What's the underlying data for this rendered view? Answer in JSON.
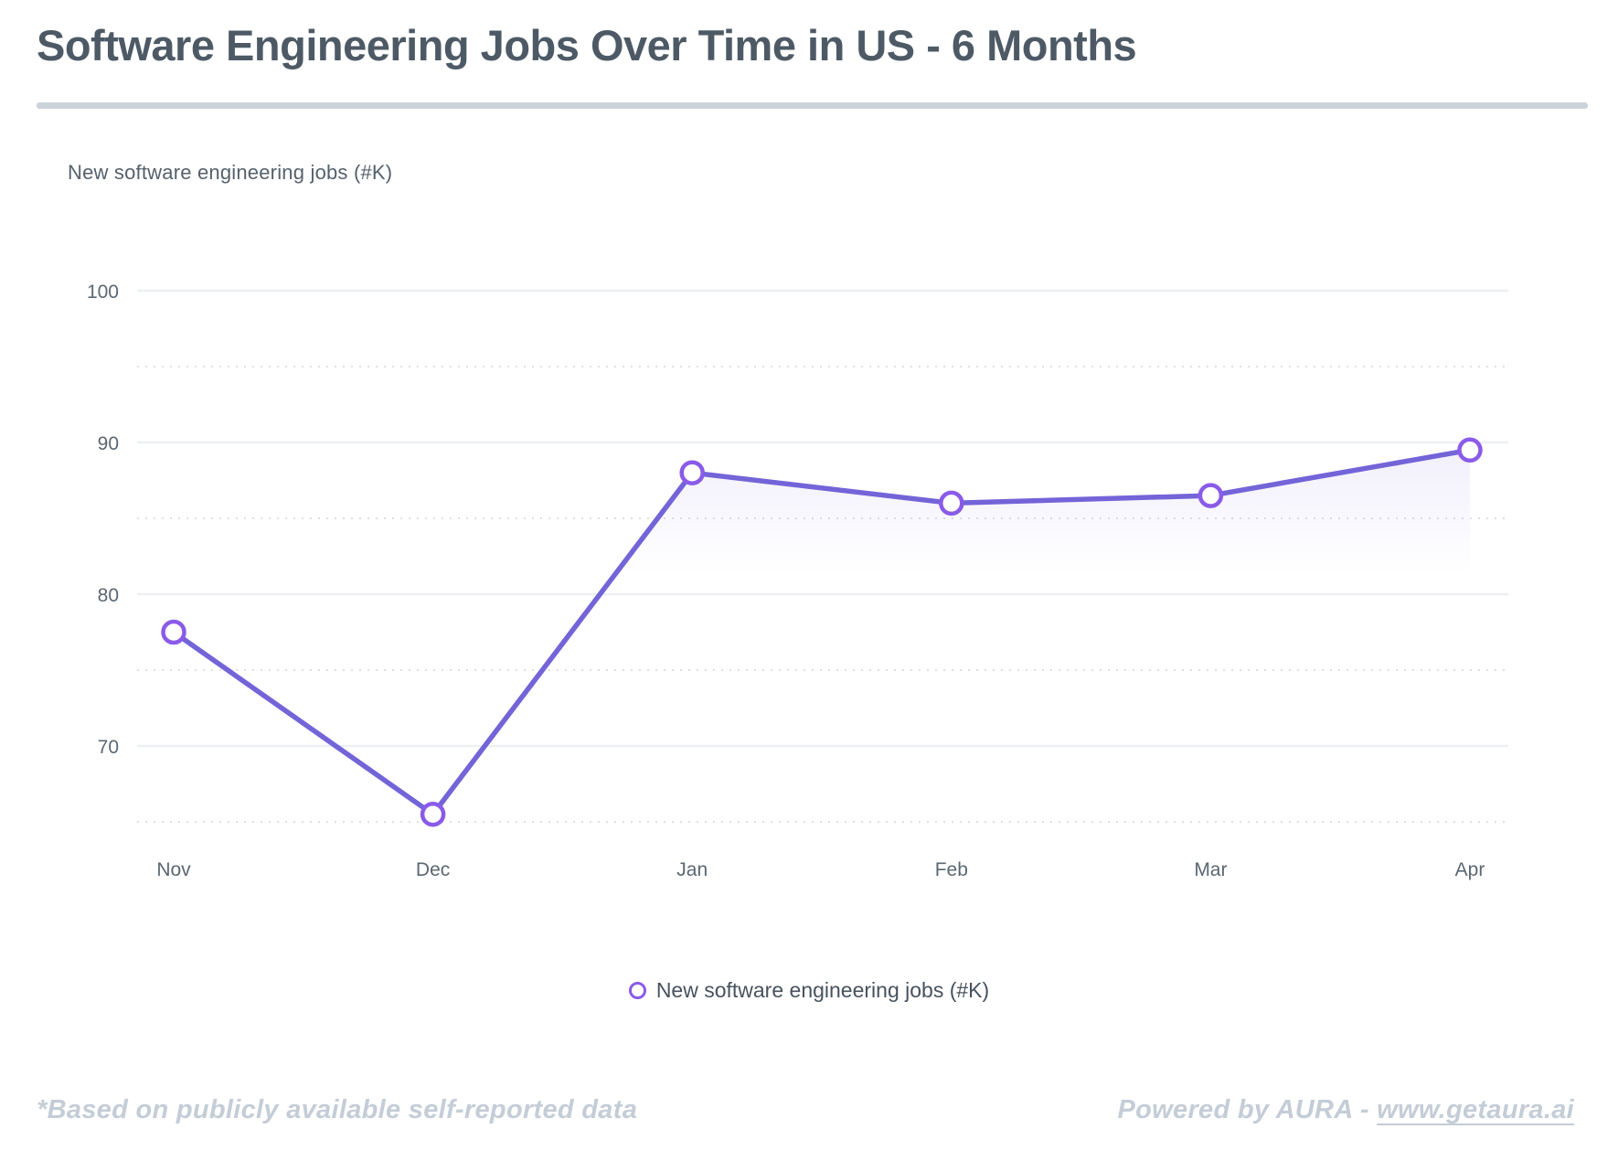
{
  "header": {
    "title": "Software Engineering Jobs Over Time in US - 6 Months"
  },
  "y_axis_title": "New software engineering jobs (#K)",
  "chart_data": {
    "type": "line",
    "title": "Software Engineering Jobs Over Time in US - 6 Months",
    "xlabel": "",
    "ylabel": "New software engineering jobs (#K)",
    "categories": [
      "Nov",
      "Dec",
      "Jan",
      "Feb",
      "Mar",
      "Apr"
    ],
    "series": [
      {
        "name": "New software engineering jobs (#K)",
        "values": [
          77.5,
          65.5,
          88,
          86,
          86.5,
          89.5
        ]
      }
    ],
    "ylim": [
      63,
      103
    ],
    "y_major_ticks": [
      100,
      90,
      80,
      70
    ],
    "y_minor_ticks": [
      95,
      85,
      75,
      65
    ],
    "grid": "horizontal-only",
    "legend_position": "bottom",
    "marker_style": "open-circle"
  },
  "legend": {
    "label": "New software engineering jobs (#K)"
  },
  "footer": {
    "note": "*Based on publicly available self-reported data",
    "powered_by": "Powered by AURA - ",
    "link": "www.getaura.ai"
  },
  "colors": {
    "line": "#7364d8",
    "marker_stroke": "#8a5be8",
    "marker_fill": "#ffffff",
    "area_fill": "#7c64e0",
    "grid_major": "#edeff2",
    "grid_minor": "#dce0e5",
    "axis_text": "#5b6772",
    "title_text": "#4d5a66",
    "divider": "#ccd3d9",
    "footer_text": "#c4cdd7"
  }
}
